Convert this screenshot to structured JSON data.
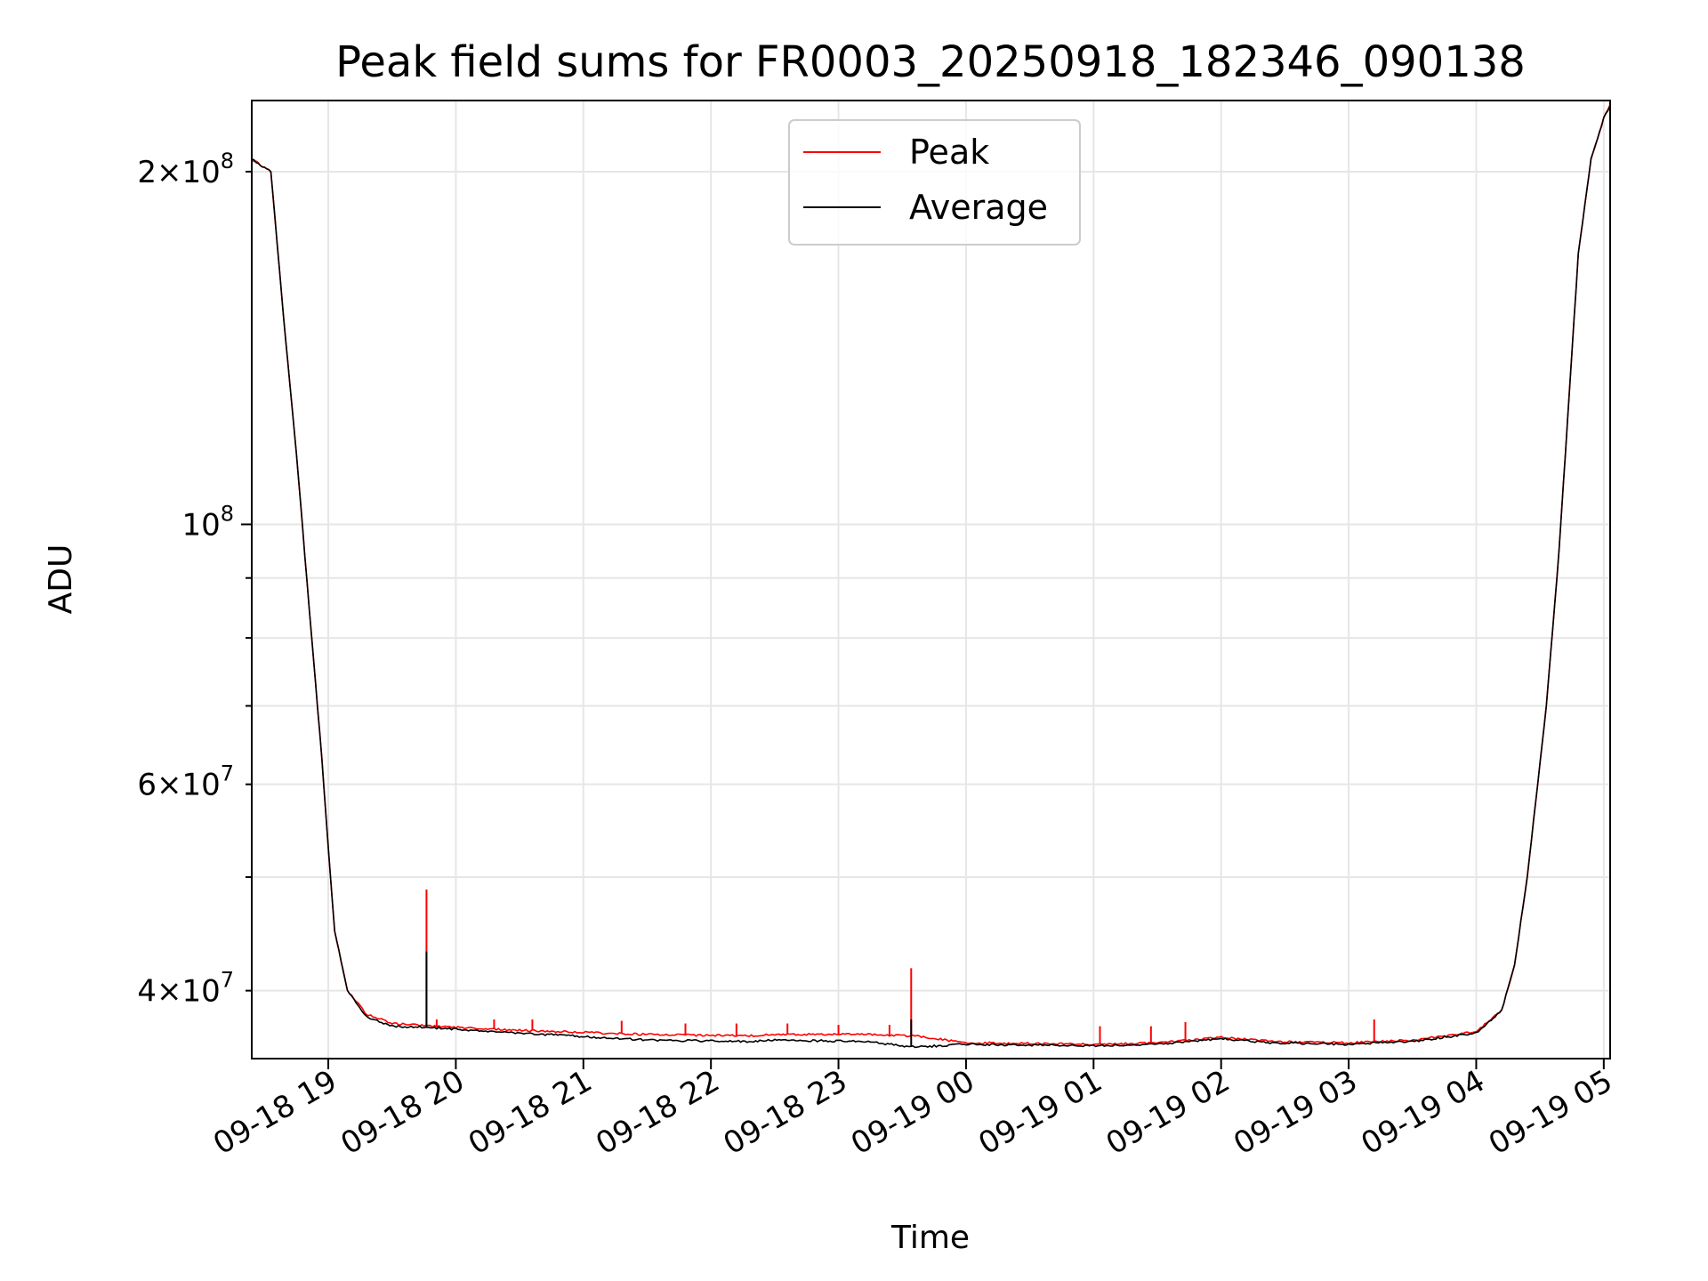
{
  "chart_data": {
    "type": "line",
    "title": "Peak field sums for FR0003_20250918_182346_090138",
    "xlabel": "Time",
    "ylabel": "ADU",
    "yscale": "log",
    "ylim": [
      35000000,
      230000000
    ],
    "xlim_hours": [
      -0.6,
      10.05
    ],
    "grid": true,
    "legend_position": "upper center",
    "x_ticks": [
      {
        "h": 0,
        "label": "09-18 19"
      },
      {
        "h": 1,
        "label": "09-18 20"
      },
      {
        "h": 2,
        "label": "09-18 21"
      },
      {
        "h": 3,
        "label": "09-18 22"
      },
      {
        "h": 4,
        "label": "09-18 23"
      },
      {
        "h": 5,
        "label": "09-19 00"
      },
      {
        "h": 6,
        "label": "09-19 01"
      },
      {
        "h": 7,
        "label": "09-19 02"
      },
      {
        "h": 8,
        "label": "09-19 03"
      },
      {
        "h": 9,
        "label": "09-19 04"
      },
      {
        "h": 10,
        "label": "09-19 05"
      }
    ],
    "y_ticks_major": [
      {
        "v": 100000000,
        "base": "10",
        "exp": "8"
      }
    ],
    "y_ticks_labeled_minor": [
      {
        "v": 200000000,
        "coef": "2",
        "base": "10",
        "exp": "8"
      },
      {
        "v": 60000000,
        "coef": "6",
        "base": "10",
        "exp": "7"
      },
      {
        "v": 40000000,
        "coef": "4",
        "base": "10",
        "exp": "7"
      }
    ],
    "y_ticks_minor_unlabeled": [
      50000000,
      70000000,
      80000000,
      90000000
    ],
    "x_hours_origin": "09-18 19:00",
    "series": [
      {
        "name": "Peak",
        "color": "#ff0000",
        "x_hours": [
          -0.6,
          -0.45,
          -0.35,
          -0.25,
          -0.15,
          -0.05,
          0.0,
          0.05,
          0.15,
          0.3,
          0.5,
          0.8,
          1.5,
          2.5,
          3.3,
          3.5,
          4.2,
          4.6,
          5.0,
          6.0,
          6.5,
          7.0,
          7.4,
          8.0,
          8.5,
          9.0,
          9.2,
          9.3,
          9.4,
          9.55,
          9.65,
          9.8,
          9.9,
          10.0,
          10.05
        ],
        "y_values": [
          205000000,
          200000000,
          150000000,
          115000000,
          85000000,
          63000000,
          53000000,
          45000000,
          40000000,
          38200000,
          37500000,
          37300000,
          37000000,
          36700000,
          36600000,
          36700000,
          36700000,
          36600000,
          36100000,
          36000000,
          36100000,
          36500000,
          36200000,
          36100000,
          36300000,
          36900000,
          38500000,
          42000000,
          50000000,
          70000000,
          95000000,
          170000000,
          205000000,
          222000000,
          228000000
        ],
        "spikes": [
          {
            "h": 0.77,
            "y": 48800000
          },
          {
            "h": 0.3,
            "y": 38200000
          },
          {
            "h": 0.85,
            "y": 37800000
          },
          {
            "h": 1.3,
            "y": 37800000
          },
          {
            "h": 1.6,
            "y": 37800000
          },
          {
            "h": 2.3,
            "y": 37700000
          },
          {
            "h": 2.8,
            "y": 37500000
          },
          {
            "h": 3.2,
            "y": 37500000
          },
          {
            "h": 3.6,
            "y": 37500000
          },
          {
            "h": 4.0,
            "y": 37400000
          },
          {
            "h": 4.4,
            "y": 37400000
          },
          {
            "h": 4.57,
            "y": 41800000
          },
          {
            "h": 6.05,
            "y": 37300000
          },
          {
            "h": 6.45,
            "y": 37300000
          },
          {
            "h": 6.72,
            "y": 37600000
          },
          {
            "h": 8.2,
            "y": 37800000
          }
        ]
      },
      {
        "name": "Average",
        "color": "#000000",
        "x_hours": [
          -0.6,
          -0.45,
          -0.35,
          -0.25,
          -0.15,
          -0.05,
          0.0,
          0.05,
          0.15,
          0.3,
          0.5,
          0.8,
          1.5,
          2.5,
          3.3,
          3.5,
          4.2,
          4.6,
          5.0,
          6.0,
          6.5,
          7.0,
          7.4,
          8.0,
          8.5,
          9.0,
          9.2,
          9.3,
          9.4,
          9.55,
          9.65,
          9.8,
          9.9,
          10.0,
          10.05
        ],
        "y_values": [
          205000000,
          200000000,
          150000000,
          115000000,
          85000000,
          63000000,
          53000000,
          45000000,
          40000000,
          38000000,
          37300000,
          37200000,
          36800000,
          36300000,
          36200000,
          36300000,
          36200000,
          35800000,
          36000000,
          35900000,
          36000000,
          36400000,
          36100000,
          36000000,
          36200000,
          36800000,
          38500000,
          42000000,
          50000000,
          70000000,
          95000000,
          170000000,
          205000000,
          222000000,
          228000000
        ],
        "spikes": [
          {
            "h": 0.77,
            "y": 43200000
          },
          {
            "h": 4.57,
            "y": 37800000
          }
        ]
      }
    ]
  }
}
